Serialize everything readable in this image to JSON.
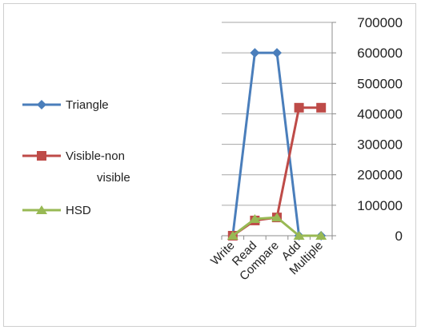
{
  "chart_data": {
    "type": "line",
    "categories": [
      "Write",
      "Read",
      "Compare",
      "Add",
      "Multiple"
    ],
    "series": [
      {
        "name": "Triangle",
        "values": [
          0,
          600000,
          600000,
          0,
          0
        ],
        "color": "#4a7ebb",
        "marker": "diamond"
      },
      {
        "name": "Visible-non visible",
        "values": [
          0,
          50000,
          60000,
          420000,
          420000
        ],
        "color": "#be4b48",
        "marker": "square"
      },
      {
        "name": "HSD",
        "values": [
          0,
          55000,
          60000,
          0,
          0
        ],
        "color": "#98b954",
        "marker": "triangle"
      }
    ],
    "legend_lines": [
      [
        "Triangle"
      ],
      [
        "Visible-non",
        "visible"
      ],
      [
        "HSD"
      ]
    ],
    "y_ticks": [
      0,
      100000,
      200000,
      300000,
      400000,
      500000,
      600000,
      700000
    ],
    "ylim": [
      0,
      700000
    ],
    "y_axis_position": "right",
    "grid": true,
    "legend_position": "left"
  }
}
